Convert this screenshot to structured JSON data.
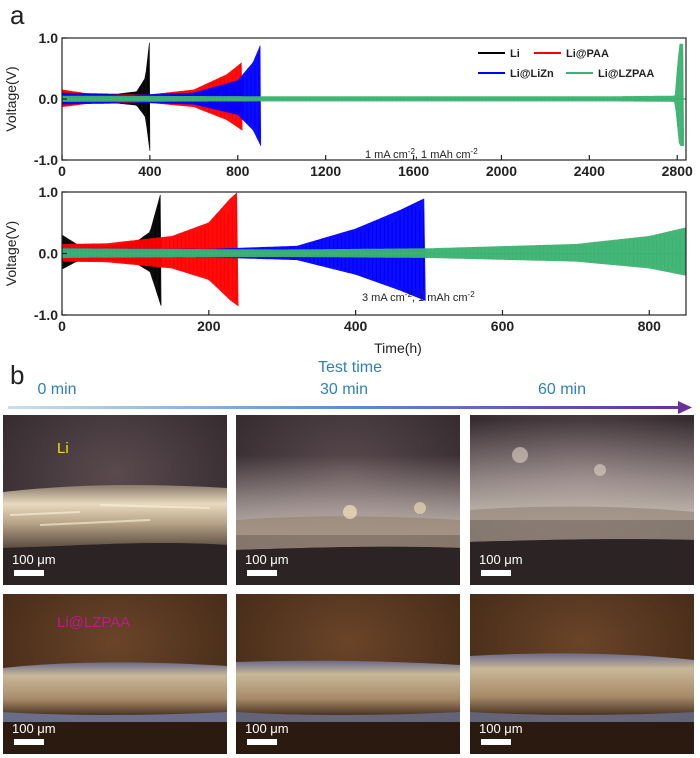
{
  "panel_a_label": "a",
  "panel_b_label": "b",
  "chart_data": [
    {
      "type": "line",
      "title": "",
      "xlabel": "",
      "ylabel": "Voltage(V)",
      "xlim": [
        0,
        2840
      ],
      "ylim": [
        -1.0,
        1.0
      ],
      "xticks": [
        0,
        400,
        800,
        1200,
        1600,
        2000,
        2400,
        2800
      ],
      "yticks": [
        -1.0,
        0.0,
        1.0
      ],
      "ytick_labels": [
        "-1.0",
        "0.0",
        "1.0"
      ],
      "annotation_pre": "1 mA cm",
      "annotation_mid": ", 1 mAh cm",
      "annotation_sup": "-2",
      "legend": [
        {
          "name": "Li",
          "color": "#000000"
        },
        {
          "name": "Li@PAA",
          "color": "#ff0000"
        },
        {
          "name": "Li@LiZn",
          "color": "#0000ff"
        },
        {
          "name": "Li@LZPAA",
          "color": "#3cb371"
        }
      ],
      "series": [
        {
          "name": "Li",
          "color": "#000000",
          "end": 400,
          "envelope": [
            [
              0,
              0.12
            ],
            [
              100,
              0.09
            ],
            [
              250,
              0.08
            ],
            [
              340,
              0.12
            ],
            [
              380,
              0.35
            ],
            [
              400,
              1.0
            ]
          ]
        },
        {
          "name": "Li@PAA",
          "color": "#ff0000",
          "end": 820,
          "envelope": [
            [
              0,
              0.15
            ],
            [
              150,
              0.07
            ],
            [
              400,
              0.07
            ],
            [
              600,
              0.15
            ],
            [
              750,
              0.4
            ],
            [
              820,
              0.6
            ]
          ]
        },
        {
          "name": "Li@LiZn",
          "color": "#0000ff",
          "end": 905,
          "envelope": [
            [
              0,
              0.1
            ],
            [
              300,
              0.06
            ],
            [
              600,
              0.1
            ],
            [
              800,
              0.3
            ],
            [
              870,
              0.6
            ],
            [
              905,
              0.9
            ]
          ]
        },
        {
          "name": "Li@LZPAA",
          "color": "#3cb371",
          "end": 2830,
          "envelope": [
            [
              0,
              0.05
            ],
            [
              1000,
              0.04
            ],
            [
              2500,
              0.04
            ],
            [
              2790,
              0.05
            ],
            [
              2810,
              0.9
            ],
            [
              2830,
              0.9
            ]
          ]
        }
      ]
    },
    {
      "type": "line",
      "title": "",
      "xlabel": "Time(h)",
      "ylabel": "Voltage(V)",
      "xlim": [
        0,
        850
      ],
      "ylim": [
        -1.0,
        1.0
      ],
      "xticks": [
        0,
        200,
        400,
        600,
        800
      ],
      "yticks": [
        -1.0,
        0.0,
        1.0
      ],
      "ytick_labels": [
        "-1.0",
        "0.0",
        "1.0"
      ],
      "annotation_pre": "3 mA cm",
      "annotation_mid": ", 1 mAh cm",
      "annotation_sup": "-2",
      "series": [
        {
          "name": "Li",
          "color": "#000000",
          "end": 135,
          "envelope": [
            [
              0,
              0.3
            ],
            [
              20,
              0.15
            ],
            [
              60,
              0.12
            ],
            [
              100,
              0.18
            ],
            [
              120,
              0.35
            ],
            [
              135,
              1.0
            ]
          ]
        },
        {
          "name": "Li@PAA",
          "color": "#ff0000",
          "end": 240,
          "envelope": [
            [
              0,
              0.15
            ],
            [
              60,
              0.16
            ],
            [
              150,
              0.28
            ],
            [
              200,
              0.5
            ],
            [
              230,
              0.9
            ],
            [
              240,
              1.0
            ]
          ]
        },
        {
          "name": "Li@LiZn",
          "color": "#0000ff",
          "end": 495,
          "envelope": [
            [
              0,
              0.08
            ],
            [
              200,
              0.07
            ],
            [
              320,
              0.12
            ],
            [
              400,
              0.4
            ],
            [
              460,
              0.7
            ],
            [
              495,
              0.9
            ]
          ]
        },
        {
          "name": "Li@LZPAA",
          "color": "#3cb371",
          "end": 850,
          "envelope": [
            [
              0,
              0.08
            ],
            [
              300,
              0.06
            ],
            [
              500,
              0.08
            ],
            [
              700,
              0.15
            ],
            [
              800,
              0.28
            ],
            [
              850,
              0.42
            ]
          ]
        }
      ]
    }
  ],
  "panel_b": {
    "timeline_title": "Test time",
    "time_labels": [
      "0 min",
      "30 min",
      "60 min"
    ],
    "row_labels": [
      {
        "text": "Li",
        "color": "#f5e000"
      },
      {
        "text": "Li@LZPAA",
        "color": "#c2188b"
      }
    ],
    "scale_bar": "100 μm"
  }
}
